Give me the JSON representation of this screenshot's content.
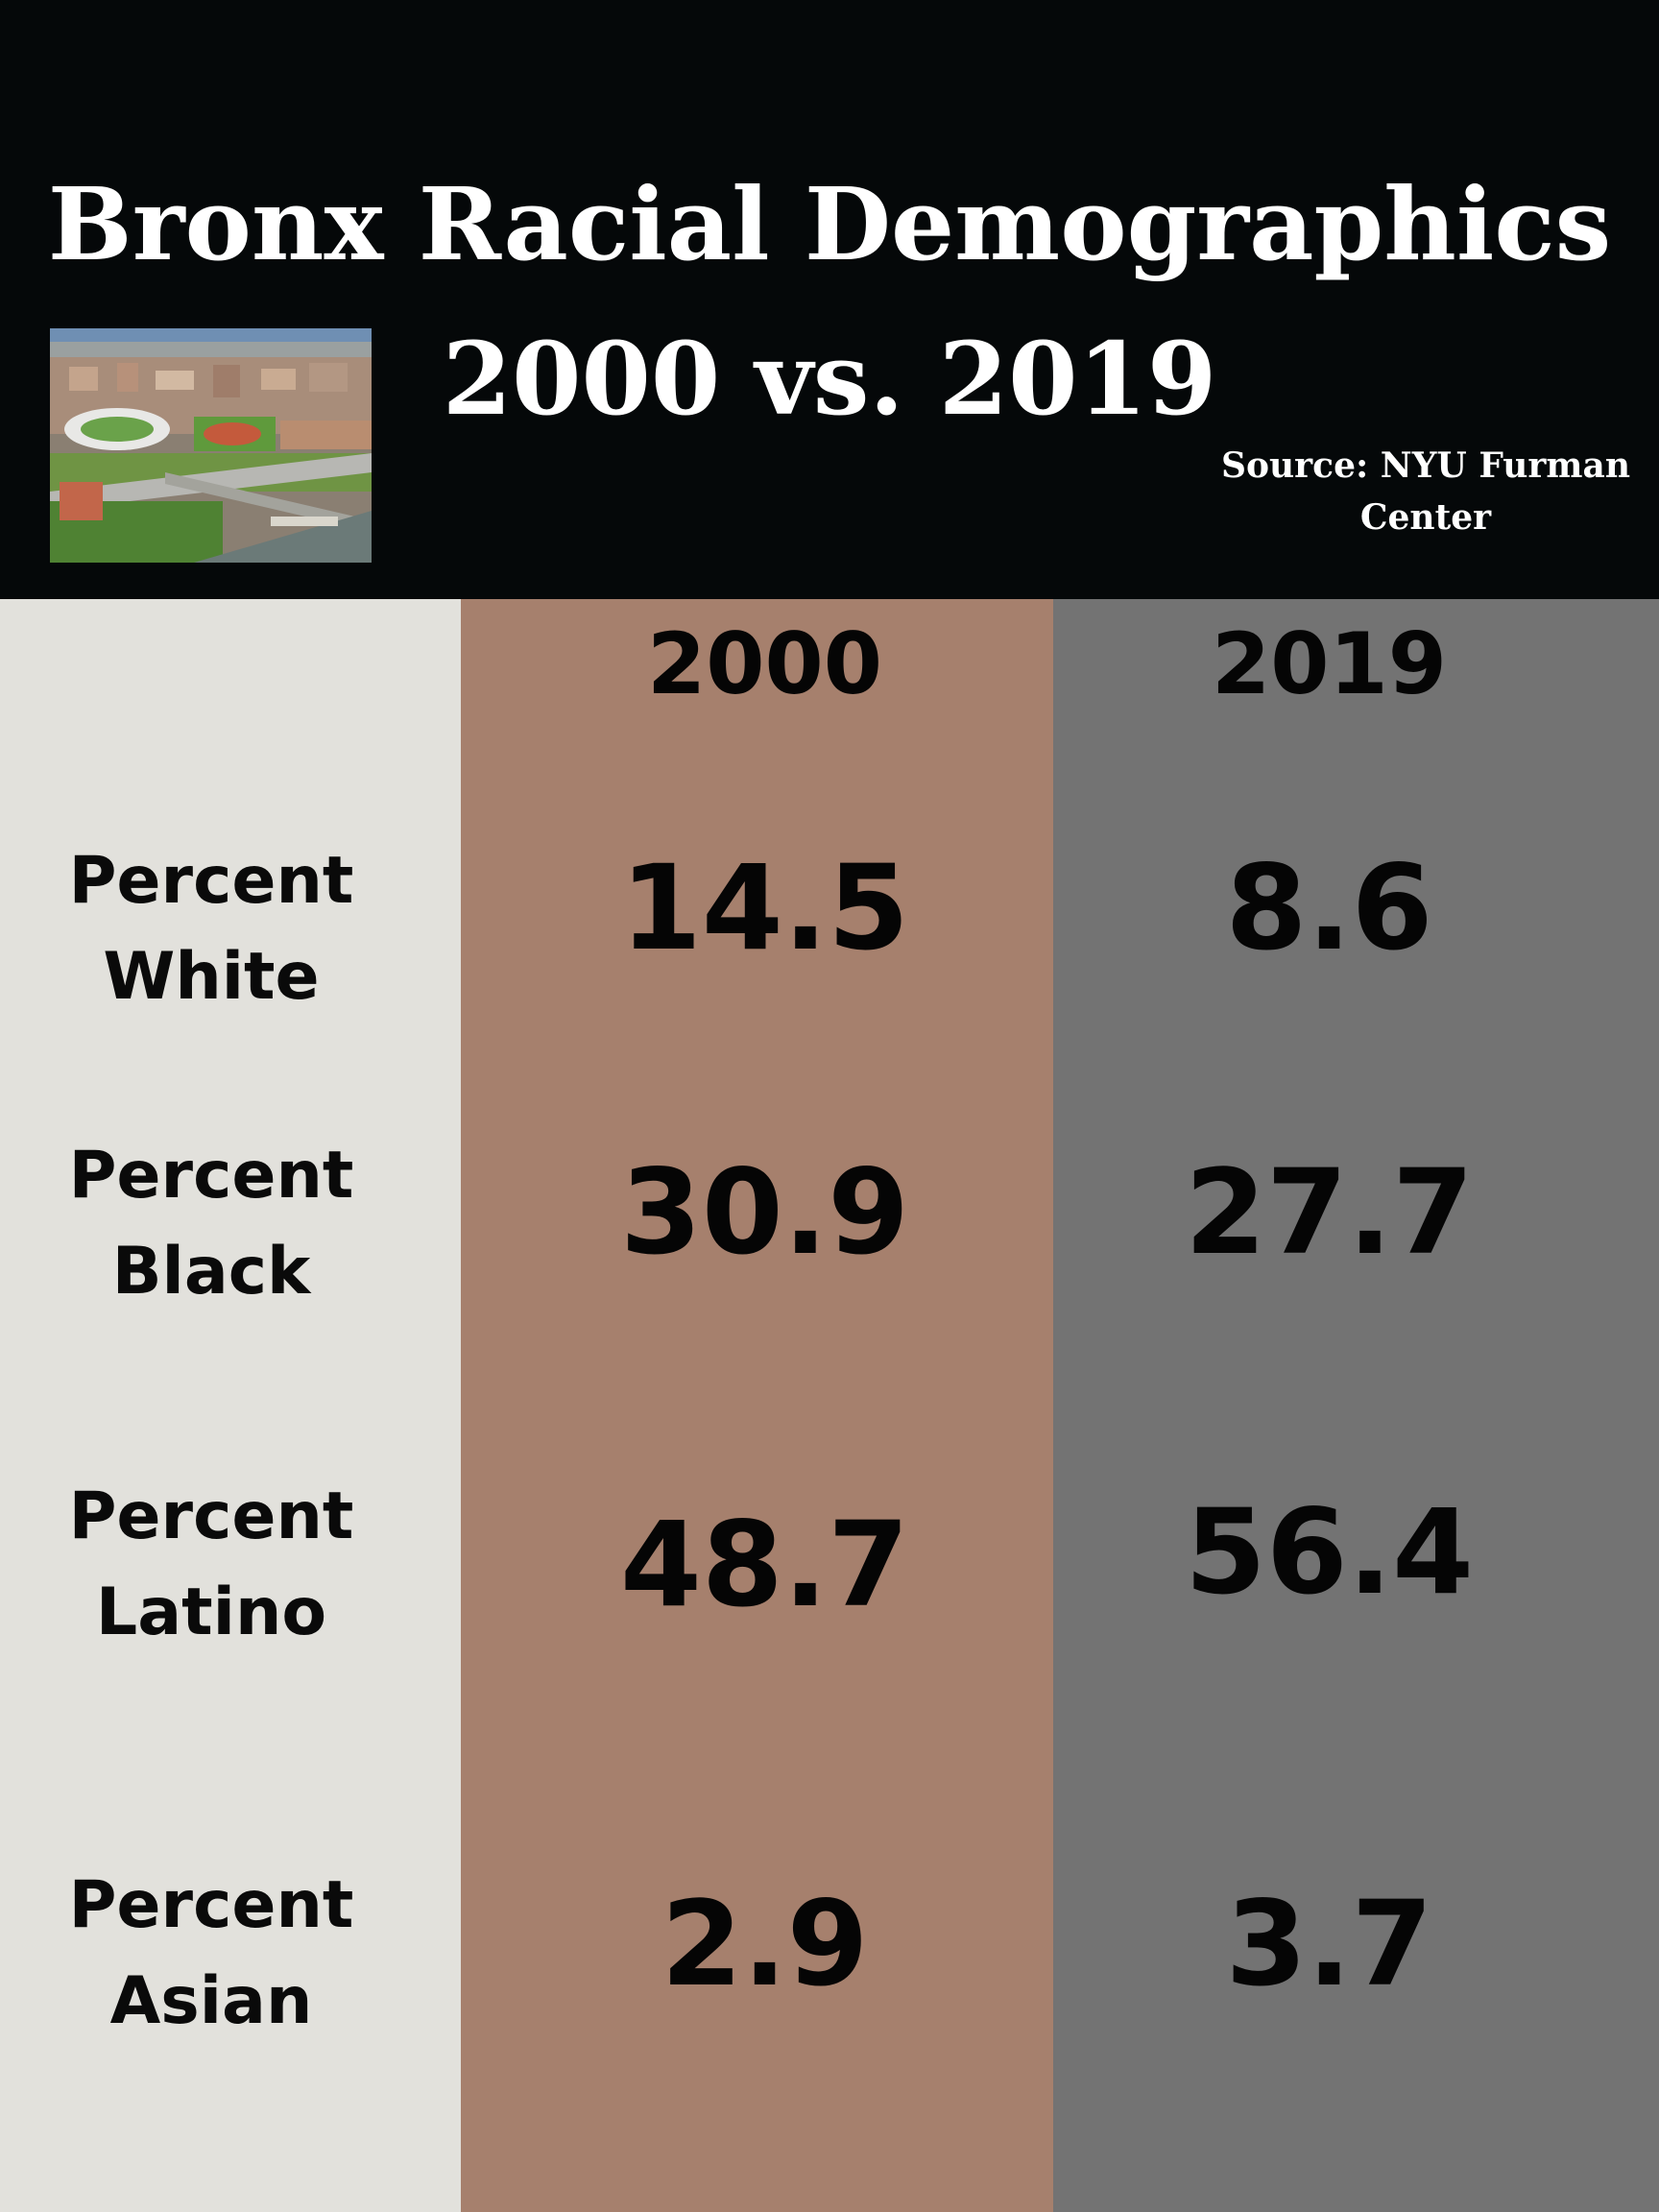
{
  "header": {
    "title_line1": "Bronx Racial Demographics",
    "title_line2": "2000 vs. 2019",
    "source_line1": "Source: NYU Furman",
    "source_line2": "Center"
  },
  "columns": {
    "year_a": "2000",
    "year_b": "2019"
  },
  "rows": [
    {
      "label_line1": "Percent",
      "label_line2": "White",
      "v2000": "14.5",
      "v2019": "8.6"
    },
    {
      "label_line1": "Percent",
      "label_line2": "Black",
      "v2000": "30.9",
      "v2019": "27.7"
    },
    {
      "label_line1": "Percent",
      "label_line2": "Latino",
      "v2000": "48.7",
      "v2019": "56.4"
    },
    {
      "label_line1": "Percent",
      "label_line2": "Asian",
      "v2000": "2.9",
      "v2019": "3.7"
    }
  ],
  "colors": {
    "header_bg": "#050809",
    "label_col": "#e2e1dc",
    "col_2000": "#a6806d",
    "col_2019": "#737373"
  }
}
